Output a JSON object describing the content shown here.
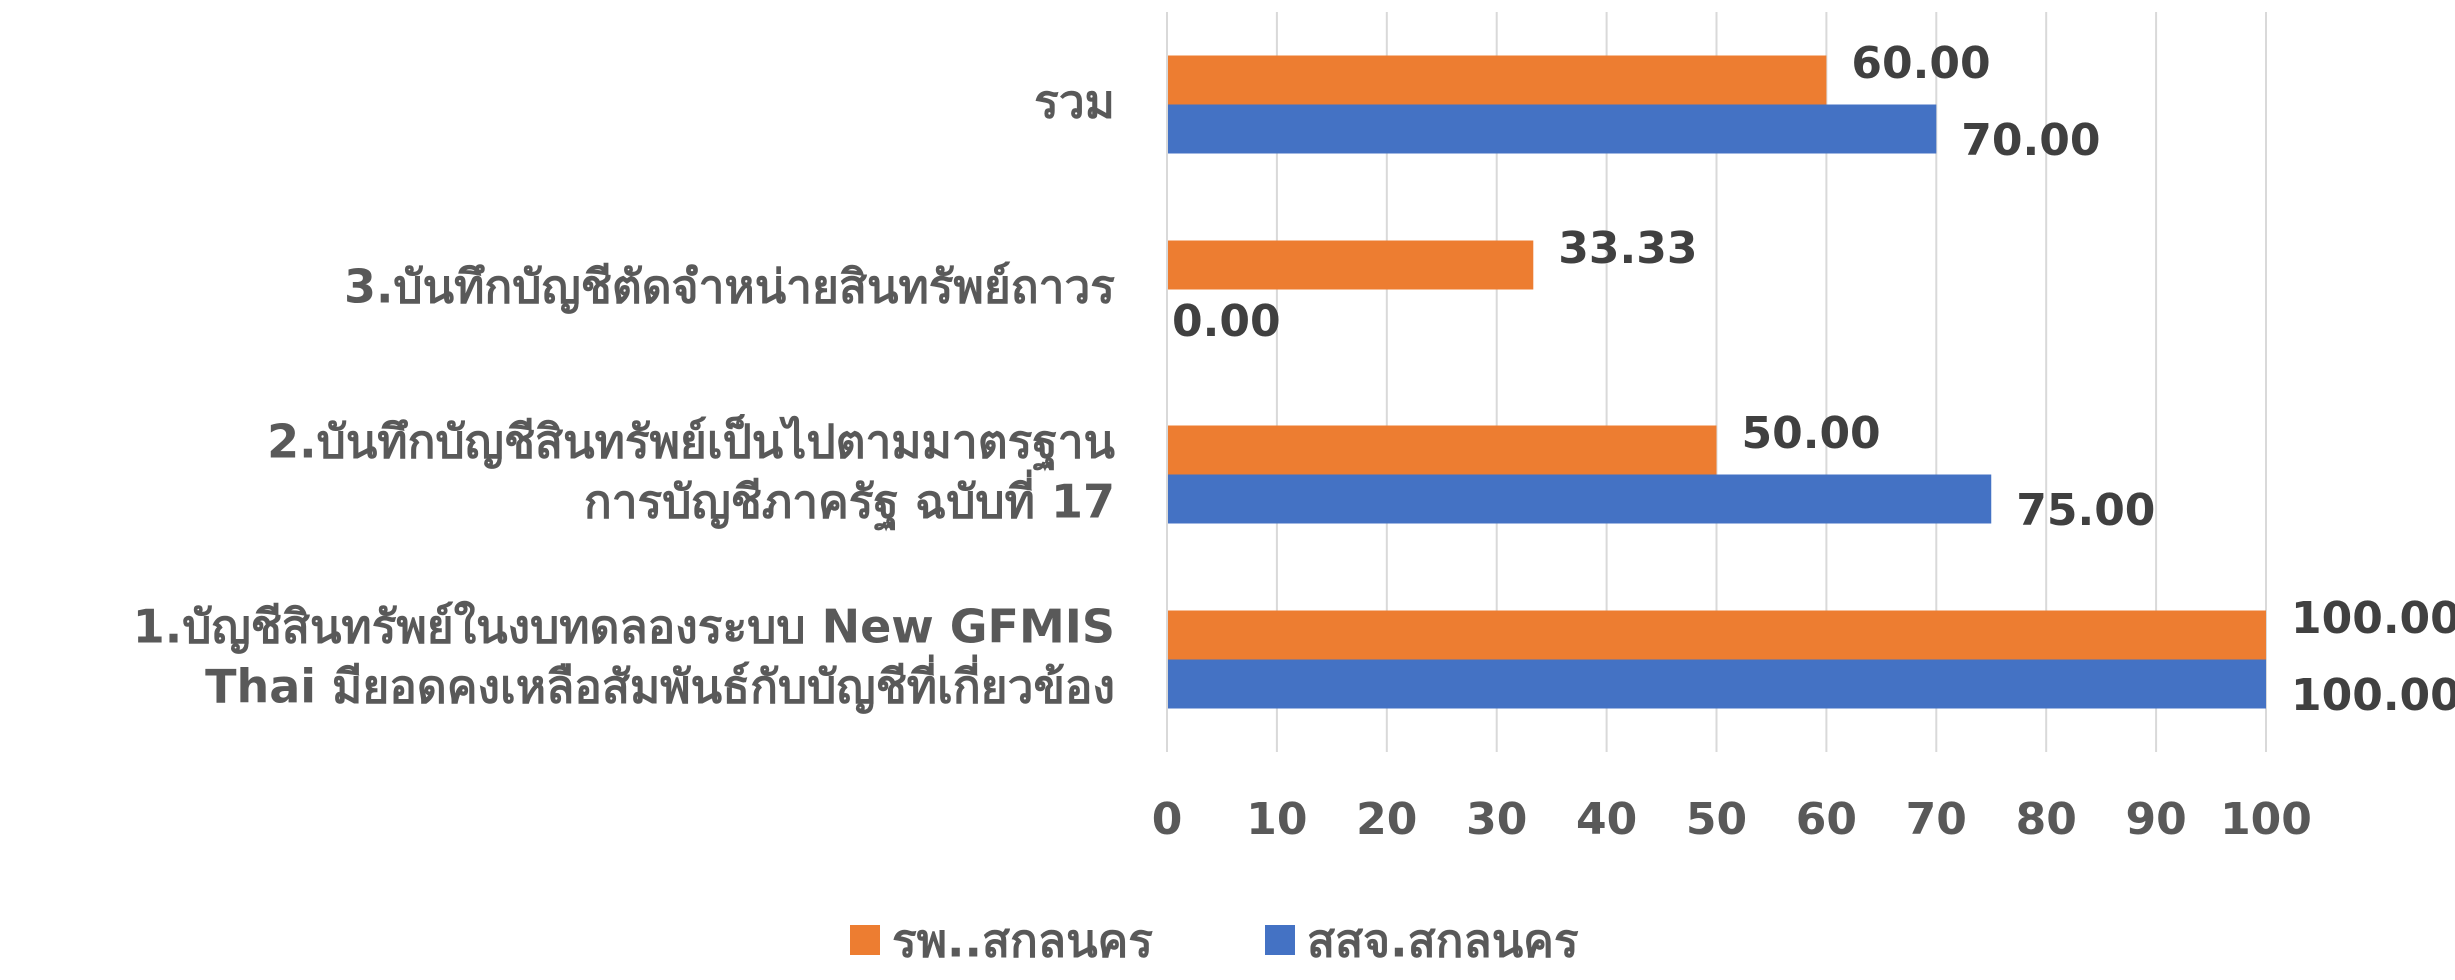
{
  "chart_data": {
    "type": "hbar",
    "categories": [
      "1.บัญชีสินทรัพย์ในงบทดลองระบบ New GFMIS\nThai มียอดคงเหลือสัมพันธ์กับบัญชีที่เกี่ยวข้อง",
      "2.บันทึกบัญชีสินทรัพย์เป็นไปตามมาตรฐาน\nการบัญชีภาครัฐ ฉบับที่ 17",
      "3.บันทึกบัญชีตัดจำหน่ายสินทรัพย์ถาวร",
      "รวม"
    ],
    "series": [
      {
        "name": "รพ..สกลนคร",
        "color": "#ed7d31",
        "values": [
          100,
          50,
          33.33,
          60
        ],
        "value_labels": [
          "100.00",
          "50.00",
          "33.33",
          "60.00"
        ]
      },
      {
        "name": "สสจ.สกลนคร",
        "color": "#4472c4",
        "values": [
          100,
          75,
          0,
          70
        ],
        "value_labels": [
          "100.00",
          "75.00",
          "0.00",
          "70.00"
        ]
      }
    ],
    "xlim": [
      0,
      100
    ],
    "xticks": [
      0,
      10,
      20,
      30,
      40,
      50,
      60,
      70,
      80,
      90,
      100
    ],
    "grid": true,
    "legend": "bottom"
  }
}
